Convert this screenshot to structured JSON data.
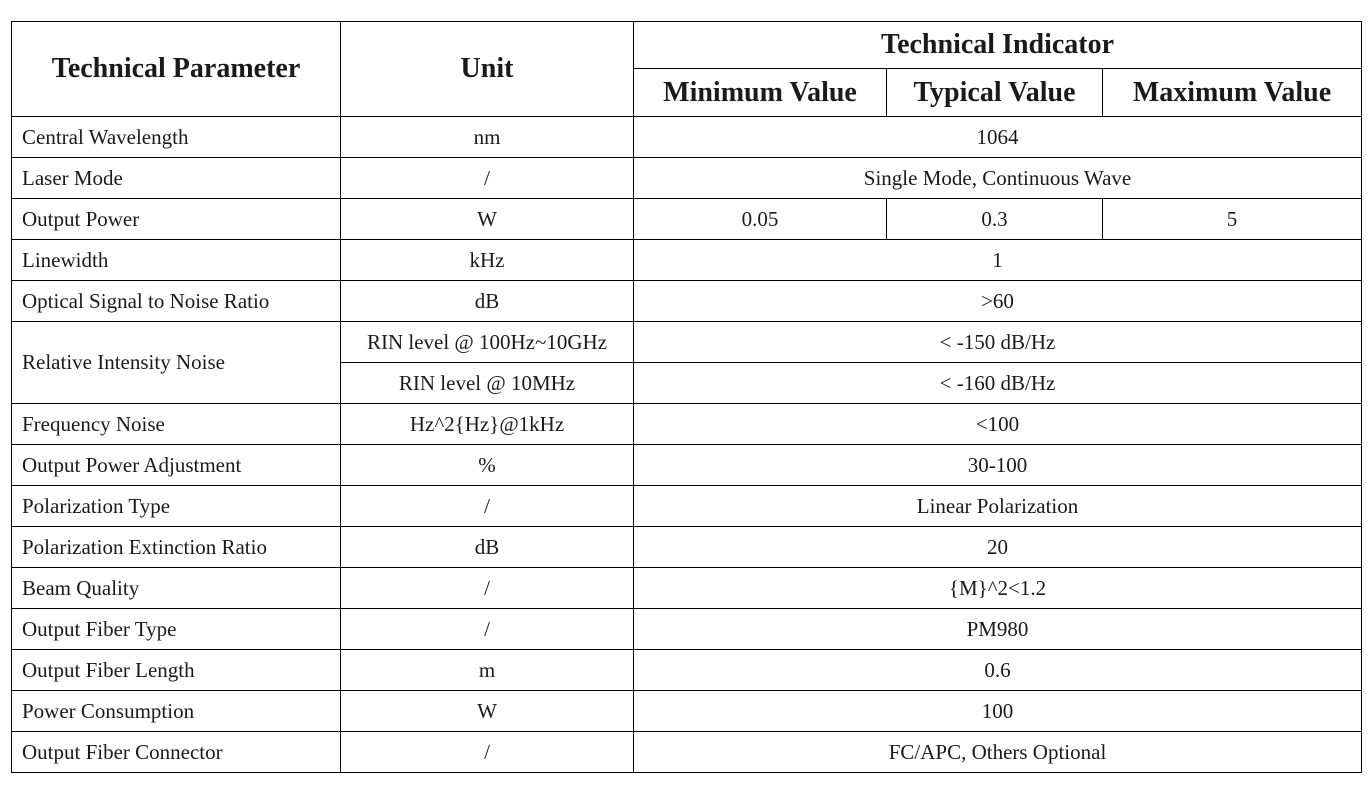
{
  "header": {
    "parameter": "Technical Parameter",
    "unit": "Unit",
    "indicator": "Technical Indicator",
    "min": "Minimum Value",
    "typical": "Typical Value",
    "max": "Maximum Value"
  },
  "rows": [
    {
      "param": "Central Wavelength",
      "unit": "nm",
      "value": "1064"
    },
    {
      "param": "Laser Mode",
      "unit": "/",
      "value": "Single Mode, Continuous Wave"
    },
    {
      "param": "Output Power",
      "unit": "W",
      "min": "0.05",
      "typical": "0.3",
      "max": "5"
    },
    {
      "param": "Linewidth",
      "unit": "kHz",
      "value": "1"
    },
    {
      "param": "Optical Signal to Noise Ratio",
      "unit": "dB",
      "value": ">60"
    },
    {
      "param": "Relative Intensity Noise",
      "unit": "RIN level @ 100Hz~10GHz",
      "value": "< -150 dB/Hz",
      "rowspan": 2
    },
    {
      "unit": "RIN level @ 10MHz",
      "value": "< -160 dB/Hz"
    },
    {
      "param": "Frequency Noise",
      "unit": "Hz^2{Hz}@1kHz",
      "value": "<100"
    },
    {
      "param": "Output Power Adjustment",
      "unit": "%",
      "value": "30-100"
    },
    {
      "param": "Polarization Type",
      "unit": "/",
      "value": "Linear Polarization"
    },
    {
      "param": "Polarization Extinction Ratio",
      "unit": "dB",
      "value": "20"
    },
    {
      "param": "Beam Quality",
      "unit": "/",
      "value": "{M}^2<1.2"
    },
    {
      "param": "Output Fiber Type",
      "unit": "/",
      "value": "PM980"
    },
    {
      "param": "Output Fiber Length",
      "unit": "m",
      "value": "0.6"
    },
    {
      "param": "Power Consumption",
      "unit": "W",
      "value": "100"
    },
    {
      "param": "Output Fiber Connector",
      "unit": "/",
      "value": "FC/APC, Others Optional"
    }
  ]
}
